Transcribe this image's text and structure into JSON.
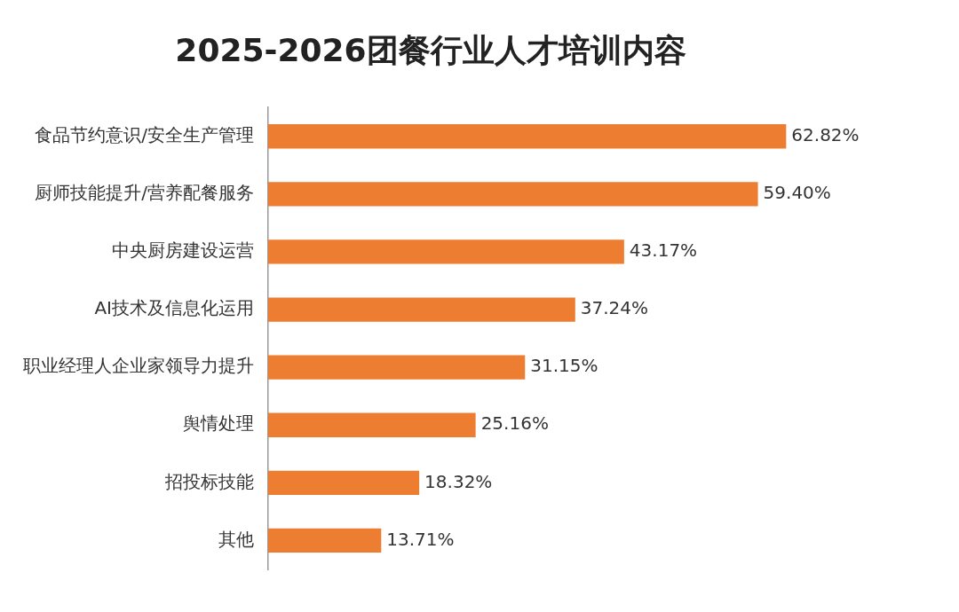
{
  "chart_data": {
    "type": "bar",
    "orientation": "horizontal",
    "title": "2025-2026团餐行业人才培训内容",
    "categories": [
      "食品节约意识/安全生产管理",
      "厨师技能提升/营养配餐服务",
      "中央厨房建设运营",
      "AI技术及信息化运用",
      "职业经理人企业家领导力提升",
      "舆情处理",
      "招投标技能",
      "其他"
    ],
    "values": [
      62.82,
      59.4,
      43.17,
      37.24,
      31.15,
      25.16,
      18.32,
      13.71
    ],
    "value_labels": [
      "62.82%",
      "59.40%",
      "43.17%",
      "37.24%",
      "31.15%",
      "25.16%",
      "18.32%",
      "13.71%"
    ],
    "color": "#ed7d31",
    "legend": false
  }
}
